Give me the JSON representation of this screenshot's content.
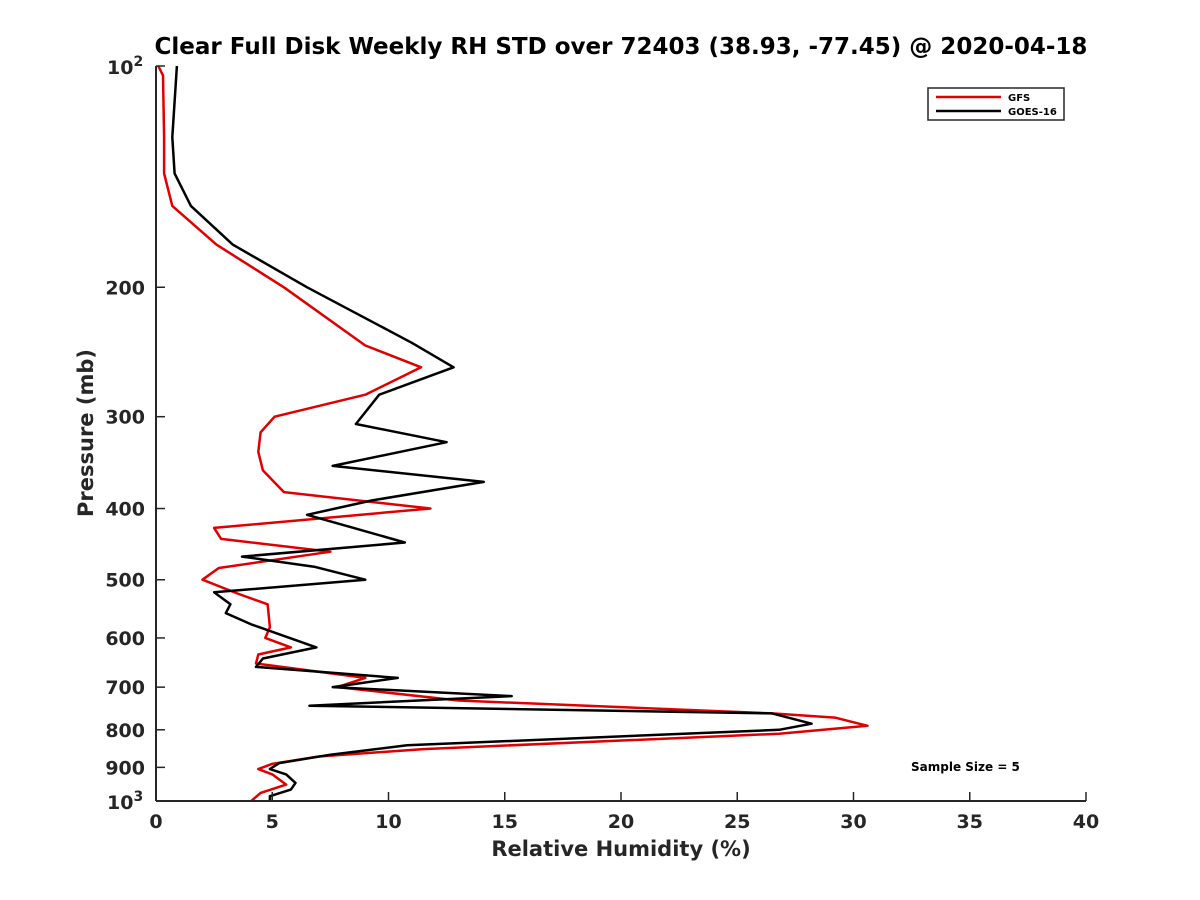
{
  "chart_data": {
    "type": "line",
    "title": "Clear Full Disk Weekly RH STD over 72403 (38.93, -77.45) @ 2020-04-18",
    "xlabel": "Relative Humidity (%)",
    "ylabel": "Pressure (mb)",
    "xlim": [
      0,
      40
    ],
    "ylim": [
      100,
      1000
    ],
    "yscale": "log",
    "y_reversed": true,
    "grid": false,
    "legend_position": "top-right",
    "x_ticks": [
      "0",
      "5",
      "10",
      "15",
      "20",
      "25",
      "30",
      "35",
      "40"
    ],
    "y_ticks": [
      {
        "value": 200,
        "label": "200"
      },
      {
        "value": 300,
        "label": "300"
      },
      {
        "value": 400,
        "label": "400"
      },
      {
        "value": 500,
        "label": "500"
      },
      {
        "value": 600,
        "label": "600"
      },
      {
        "value": 700,
        "label": "700"
      },
      {
        "value": 800,
        "label": "800"
      },
      {
        "value": 900,
        "label": "900"
      }
    ],
    "y_tick_top": {
      "value": 100,
      "base": "10",
      "exp": "2"
    },
    "y_tick_bottom": {
      "value": 1000,
      "base": "10",
      "exp": "3"
    },
    "annotation": "Sample Size = 5",
    "series": [
      {
        "name": "GFS",
        "color": "#e00000",
        "points": [
          [
            0.1,
            100
          ],
          [
            0.3,
            103
          ],
          [
            0.35,
            125
          ],
          [
            0.35,
            140
          ],
          [
            0.7,
            155
          ],
          [
            2.6,
            175
          ],
          [
            5.5,
            200
          ],
          [
            9.0,
            240
          ],
          [
            11.4,
            257
          ],
          [
            9.0,
            280
          ],
          [
            5.1,
            300
          ],
          [
            4.5,
            315
          ],
          [
            4.4,
            335
          ],
          [
            4.6,
            355
          ],
          [
            5.5,
            380
          ],
          [
            11.8,
            400
          ],
          [
            2.5,
            425
          ],
          [
            2.8,
            440
          ],
          [
            7.5,
            458
          ],
          [
            2.7,
            482
          ],
          [
            2.0,
            500
          ],
          [
            3.5,
            522
          ],
          [
            4.8,
            540
          ],
          [
            4.9,
            580
          ],
          [
            4.7,
            600
          ],
          [
            5.8,
            618
          ],
          [
            4.4,
            632
          ],
          [
            4.3,
            650
          ],
          [
            9.0,
            680
          ],
          [
            7.8,
            700
          ],
          [
            13.0,
            730
          ],
          [
            26.5,
            760
          ],
          [
            29.2,
            770
          ],
          [
            30.6,
            790
          ],
          [
            26.8,
            810
          ],
          [
            11.5,
            850
          ],
          [
            7.0,
            870
          ],
          [
            5.0,
            890
          ],
          [
            4.4,
            905
          ],
          [
            5.0,
            920
          ],
          [
            5.6,
            950
          ],
          [
            4.5,
            975
          ],
          [
            4.1,
            1000
          ]
        ]
      },
      {
        "name": "GOES-16",
        "color": "#000000",
        "points": [
          [
            0.9,
            100
          ],
          [
            0.7,
            125
          ],
          [
            0.8,
            140
          ],
          [
            1.5,
            155
          ],
          [
            3.3,
            175
          ],
          [
            6.5,
            200
          ],
          [
            11.0,
            238
          ],
          [
            12.8,
            257
          ],
          [
            9.6,
            280
          ],
          [
            8.6,
            307
          ],
          [
            12.5,
            325
          ],
          [
            7.6,
            350
          ],
          [
            14.1,
            368
          ],
          [
            9.3,
            390
          ],
          [
            6.5,
            408
          ],
          [
            8.5,
            425
          ],
          [
            10.7,
            445
          ],
          [
            3.7,
            465
          ],
          [
            6.8,
            480
          ],
          [
            9.0,
            500
          ],
          [
            2.5,
            520
          ],
          [
            3.2,
            540
          ],
          [
            3.0,
            555
          ],
          [
            4.1,
            575
          ],
          [
            6.9,
            618
          ],
          [
            4.6,
            640
          ],
          [
            4.3,
            657
          ],
          [
            10.4,
            680
          ],
          [
            7.6,
            700
          ],
          [
            15.3,
            720
          ],
          [
            6.6,
            742
          ],
          [
            26.5,
            760
          ],
          [
            28.2,
            785
          ],
          [
            26.8,
            800
          ],
          [
            10.8,
            840
          ],
          [
            7.5,
            865
          ],
          [
            5.3,
            888
          ],
          [
            4.9,
            905
          ],
          [
            5.6,
            920
          ],
          [
            6.0,
            945
          ],
          [
            5.8,
            965
          ],
          [
            4.9,
            985
          ],
          [
            4.9,
            1000
          ]
        ]
      }
    ]
  }
}
